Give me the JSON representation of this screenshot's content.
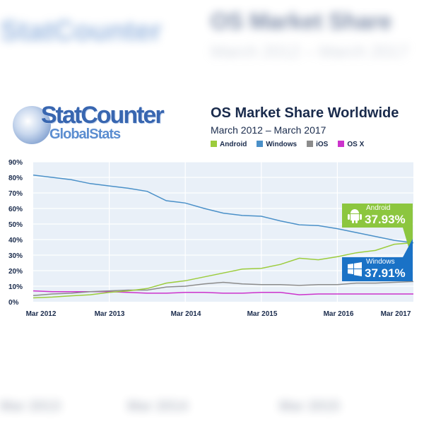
{
  "background": {
    "logo": "StatCounter",
    "title": "OS Market Share",
    "subtitle": "March 2012 – March 2017",
    "x_labels": [
      "Mar 2013",
      "Mar 2014",
      "Mar 2015"
    ]
  },
  "logo": {
    "line1": "StatCounter",
    "line2": "GlobalStats"
  },
  "chart_data": {
    "type": "line",
    "title": "OS Market Share Worldwide",
    "subtitle": "March 2012 – March 2017",
    "ylim": [
      0,
      90
    ],
    "y_ticks": [
      "0%",
      "10%",
      "20%",
      "30%",
      "40%",
      "50%",
      "60%",
      "70%",
      "80%",
      "90%"
    ],
    "x_ticks": [
      "Mar 2012",
      "Mar 2013",
      "Mar 2014",
      "Mar 2015",
      "Mar 2016",
      "Mar 2017"
    ],
    "x_step": "quarterly",
    "grid": true,
    "legend_position": "top",
    "series": [
      {
        "name": "Android",
        "color": "#9ccc3c",
        "values": [
          2.5,
          3,
          3.8,
          4.5,
          6,
          7,
          8.5,
          12,
          13.5,
          16,
          18.5,
          21,
          21.5,
          24,
          28,
          27,
          29,
          31.5,
          33,
          37,
          37.93
        ]
      },
      {
        "name": "Windows",
        "color": "#4a90c8",
        "values": [
          81.5,
          80,
          78.5,
          76,
          74.5,
          73,
          71,
          65,
          63.5,
          60,
          57,
          55.5,
          55,
          52,
          49.5,
          49,
          47,
          44.5,
          42,
          39.5,
          37.91
        ]
      },
      {
        "name": "iOS",
        "color": "#8c8c8c",
        "values": [
          4,
          5,
          5.5,
          6.5,
          7,
          7.5,
          7.5,
          9.5,
          10,
          11.5,
          12.5,
          11.5,
          11,
          11,
          10.5,
          11,
          11,
          12,
          12,
          12.5,
          13
        ]
      },
      {
        "name": "OS X",
        "color": "#cc33cc",
        "values": [
          7,
          6.5,
          6.5,
          6.5,
          6.5,
          6,
          5.5,
          5.5,
          6,
          6,
          5.5,
          5.5,
          6,
          6,
          4.5,
          5,
          5,
          5,
          5,
          5,
          5
        ]
      }
    ],
    "callouts": [
      {
        "name": "Android",
        "value": "37.93%",
        "color": "#8cc63f"
      },
      {
        "name": "Windows",
        "value": "37.91%",
        "color": "#1a72c6"
      }
    ]
  }
}
